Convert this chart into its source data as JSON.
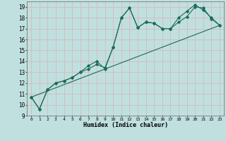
{
  "xlabel": "Humidex (Indice chaleur)",
  "bg_color": "#c0e0e0",
  "line_color": "#1a6b5a",
  "grid_color": "#d8b8b8",
  "xlim": [
    -0.5,
    23.5
  ],
  "ylim": [
    9.0,
    19.5
  ],
  "yticks": [
    9,
    10,
    11,
    12,
    13,
    14,
    15,
    16,
    17,
    18,
    19
  ],
  "xticks": [
    0,
    1,
    2,
    3,
    4,
    5,
    6,
    7,
    8,
    9,
    10,
    11,
    12,
    13,
    14,
    15,
    16,
    17,
    18,
    19,
    20,
    21,
    22,
    23
  ],
  "series": [
    {
      "x": [
        0,
        1,
        2,
        3,
        4,
        5,
        6,
        7,
        8,
        9,
        10,
        11,
        12,
        13,
        14,
        15,
        16,
        17,
        18,
        19,
        20,
        21,
        22,
        23
      ],
      "y": [
        10.7,
        9.6,
        11.4,
        12.0,
        12.2,
        12.5,
        13.0,
        13.3,
        13.7,
        13.4,
        15.3,
        18.0,
        18.9,
        17.1,
        17.6,
        17.5,
        17.0,
        17.0,
        17.6,
        18.1,
        19.0,
        18.9,
        17.9,
        17.3
      ]
    },
    {
      "x": [
        0,
        1,
        2,
        3,
        4,
        5,
        6,
        7,
        8,
        9,
        10,
        11,
        12,
        13,
        14,
        15,
        16,
        17,
        18,
        19,
        20,
        21,
        22,
        23
      ],
      "y": [
        10.7,
        9.6,
        11.4,
        12.0,
        12.2,
        12.5,
        13.0,
        13.6,
        14.0,
        13.3,
        15.3,
        18.0,
        18.9,
        17.1,
        17.6,
        17.5,
        17.0,
        17.0,
        18.0,
        18.6,
        19.2,
        18.7,
        18.0,
        17.3
      ]
    },
    {
      "x": [
        0,
        23
      ],
      "y": [
        10.7,
        17.3
      ]
    }
  ]
}
